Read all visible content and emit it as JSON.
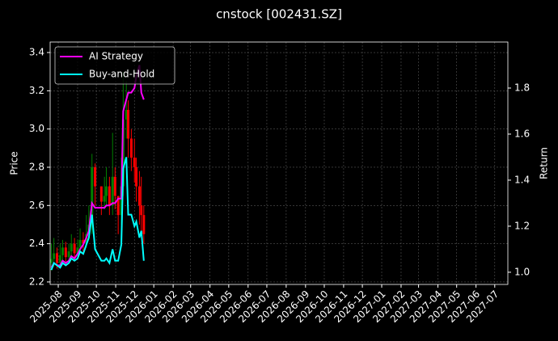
{
  "chart_data": {
    "type": "candlestick",
    "title": "cnstock [002431.SZ]",
    "ylabel": "Price",
    "y2label": "Return",
    "x": [
      "2025-07-21",
      "2025-07-25",
      "2025-07-30",
      "2025-08-04",
      "2025-08-08",
      "2025-08-13",
      "2025-08-18",
      "2025-08-22",
      "2025-08-27",
      "2025-09-01",
      "2025-09-05",
      "2025-09-10",
      "2025-09-15",
      "2025-09-19",
      "2025-09-24",
      "2025-09-29",
      "2025-10-09",
      "2025-10-14",
      "2025-10-17",
      "2025-10-22",
      "2025-10-27",
      "2025-10-31",
      "2025-11-05",
      "2025-11-10",
      "2025-11-13",
      "2025-11-18",
      "2025-11-21",
      "2025-11-26",
      "2025-12-01",
      "2025-12-04",
      "2025-12-09",
      "2025-12-12",
      "2025-12-16"
    ],
    "open": [
      2.3,
      2.32,
      2.35,
      2.3,
      2.34,
      2.38,
      2.33,
      2.36,
      2.4,
      2.35,
      2.38,
      2.42,
      2.4,
      2.45,
      2.5,
      2.8,
      2.7,
      2.62,
      2.65,
      2.7,
      2.6,
      2.75,
      2.65,
      2.55,
      2.7,
      3.05,
      3.1,
      2.95,
      2.85,
      2.8,
      2.7,
      2.6,
      2.55
    ],
    "high": [
      2.4,
      2.43,
      2.38,
      2.4,
      2.42,
      2.41,
      2.4,
      2.45,
      2.43,
      2.42,
      2.48,
      2.46,
      2.55,
      2.6,
      2.87,
      2.82,
      2.7,
      2.75,
      2.8,
      2.75,
      2.98,
      2.8,
      2.65,
      2.85,
      3.3,
      3.25,
      3.15,
      3.0,
      2.95,
      2.85,
      2.78,
      2.75,
      2.6
    ],
    "low": [
      2.26,
      2.28,
      2.27,
      2.28,
      2.31,
      2.29,
      2.3,
      2.33,
      2.31,
      2.33,
      2.36,
      2.35,
      2.38,
      2.42,
      2.45,
      2.6,
      2.55,
      2.58,
      2.6,
      2.55,
      2.55,
      2.58,
      2.45,
      2.5,
      2.65,
      2.95,
      2.85,
      2.78,
      2.72,
      2.62,
      2.5,
      2.45,
      2.4
    ],
    "close": [
      2.32,
      2.35,
      2.3,
      2.34,
      2.38,
      2.33,
      2.36,
      2.4,
      2.35,
      2.38,
      2.42,
      2.4,
      2.45,
      2.5,
      2.8,
      2.7,
      2.62,
      2.65,
      2.7,
      2.6,
      2.75,
      2.65,
      2.55,
      2.7,
      3.05,
      3.1,
      2.95,
      2.85,
      2.8,
      2.7,
      2.6,
      2.55,
      2.45
    ],
    "up_color": "#008000",
    "down_color": "#ff0000",
    "series": [
      {
        "name": "AI Strategy",
        "color": "#ff00ff",
        "axis": "y2",
        "values": [
          1.02,
          1.04,
          1.03,
          1.03,
          1.05,
          1.04,
          1.05,
          1.07,
          1.06,
          1.08,
          1.1,
          1.12,
          1.15,
          1.18,
          1.3,
          1.28,
          1.28,
          1.28,
          1.29,
          1.29,
          1.3,
          1.3,
          1.32,
          1.32,
          1.7,
          1.75,
          1.78,
          1.78,
          1.8,
          1.85,
          1.9,
          1.78,
          1.75
        ]
      },
      {
        "name": "Buy-and-Hold",
        "color": "#00ffff",
        "axis": "y2",
        "values": [
          1.01,
          1.04,
          1.03,
          1.02,
          1.04,
          1.03,
          1.04,
          1.06,
          1.05,
          1.06,
          1.09,
          1.08,
          1.12,
          1.15,
          1.25,
          1.1,
          1.05,
          1.05,
          1.06,
          1.04,
          1.1,
          1.05,
          1.05,
          1.12,
          1.45,
          1.5,
          1.25,
          1.25,
          1.2,
          1.22,
          1.15,
          1.18,
          1.05
        ]
      }
    ],
    "xlim": [
      "2025-07-19",
      "2027-07-22"
    ],
    "xticks": [
      {
        "value": "2025-08-01",
        "label": "2025-08"
      },
      {
        "value": "2025-09-01",
        "label": "2025-09"
      },
      {
        "value": "2025-10-01",
        "label": "2025-10"
      },
      {
        "value": "2025-11-01",
        "label": "2025-11"
      },
      {
        "value": "2025-12-01",
        "label": "2025-12"
      },
      {
        "value": "2026-01-01",
        "label": "2026-01"
      },
      {
        "value": "2026-02-01",
        "label": "2026-02"
      },
      {
        "value": "2026-03-01",
        "label": "2026-03"
      },
      {
        "value": "2026-04-01",
        "label": "2026-04"
      },
      {
        "value": "2026-05-01",
        "label": "2026-05"
      },
      {
        "value": "2026-06-01",
        "label": "2026-06"
      },
      {
        "value": "2026-07-01",
        "label": "2026-07"
      },
      {
        "value": "2026-08-01",
        "label": "2026-08"
      },
      {
        "value": "2026-09-01",
        "label": "2026-09"
      },
      {
        "value": "2026-10-01",
        "label": "2026-10"
      },
      {
        "value": "2026-11-01",
        "label": "2026-11"
      },
      {
        "value": "2026-12-01",
        "label": "2026-12"
      },
      {
        "value": "2027-01-01",
        "label": "2027-01"
      },
      {
        "value": "2027-02-01",
        "label": "2027-02"
      },
      {
        "value": "2027-03-01",
        "label": "2027-03"
      },
      {
        "value": "2027-04-01",
        "label": "2027-04"
      },
      {
        "value": "2027-05-01",
        "label": "2027-05"
      },
      {
        "value": "2027-06-01",
        "label": "2027-06"
      },
      {
        "value": "2027-07-01",
        "label": "2027-07"
      }
    ],
    "ylim": [
      2.187,
      3.455
    ],
    "yticks": [
      2.2,
      2.4,
      2.6,
      2.8,
      {
        "value": 3,
        "label": "3.0"
      },
      3.2,
      3.4
    ],
    "y2lim": [
      0.947,
      2.0
    ],
    "y2ticks": [
      {
        "value": 1,
        "label": "1.0"
      },
      1.2,
      1.4,
      1.6,
      1.8
    ],
    "grid": true,
    "legend": "upper-left"
  }
}
